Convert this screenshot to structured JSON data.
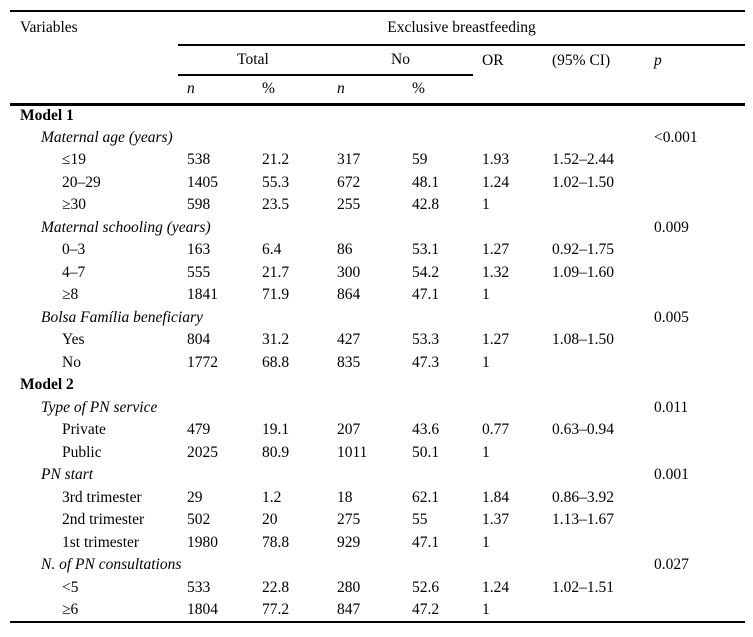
{
  "page": {
    "background": "#ffffff",
    "text_color": "#000000",
    "rule_color": "#000000"
  },
  "header": {
    "variables": "Variables",
    "span": "Exclusive breastfeeding",
    "total": "Total",
    "no": "No",
    "or": "OR",
    "ci": "(95% CI)",
    "p": "p",
    "n": "n",
    "pct": "%"
  },
  "sections": [
    {
      "label": "Model 1",
      "groups": [
        {
          "label": "Maternal age (years)",
          "p": "<0.001",
          "rows": [
            {
              "label": "≤19",
              "n_total": "538",
              "pct_total": "21.2",
              "n_no": "317",
              "pct_no": "59",
              "or": "1.93",
              "ci": "1.52–2.44"
            },
            {
              "label": "20–29",
              "n_total": "1405",
              "pct_total": "55.3",
              "n_no": "672",
              "pct_no": "48.1",
              "or": "1.24",
              "ci": "1.02–1.50"
            },
            {
              "label": "≥30",
              "n_total": "598",
              "pct_total": "23.5",
              "n_no": "255",
              "pct_no": "42.8",
              "or": "1",
              "ci": ""
            }
          ]
        },
        {
          "label": "Maternal schooling (years)",
          "p": "0.009",
          "rows": [
            {
              "label": "0–3",
              "n_total": "163",
              "pct_total": "6.4",
              "n_no": "86",
              "pct_no": "53.1",
              "or": "1.27",
              "ci": "0.92–1.75"
            },
            {
              "label": "4–7",
              "n_total": "555",
              "pct_total": "21.7",
              "n_no": "300",
              "pct_no": "54.2",
              "or": "1.32",
              "ci": "1.09–1.60"
            },
            {
              "label": "≥8",
              "n_total": "1841",
              "pct_total": "71.9",
              "n_no": "864",
              "pct_no": "47.1",
              "or": "1",
              "ci": ""
            }
          ]
        },
        {
          "label": "Bolsa Família beneficiary",
          "p": "0.005",
          "rows": [
            {
              "label": "Yes",
              "n_total": "804",
              "pct_total": "31.2",
              "n_no": "427",
              "pct_no": "53.3",
              "or": "1.27",
              "ci": "1.08–1.50"
            },
            {
              "label": "No",
              "n_total": "1772",
              "pct_total": "68.8",
              "n_no": "835",
              "pct_no": "47.3",
              "or": "1",
              "ci": ""
            }
          ]
        }
      ]
    },
    {
      "label": "Model 2",
      "groups": [
        {
          "label": "Type of PN service",
          "p": "0.011",
          "rows": [
            {
              "label": "Private",
              "n_total": "479",
              "pct_total": "19.1",
              "n_no": "207",
              "pct_no": "43.6",
              "or": "0.77",
              "ci": "0.63–0.94"
            },
            {
              "label": "Public",
              "n_total": "2025",
              "pct_total": "80.9",
              "n_no": "1011",
              "pct_no": "50.1",
              "or": "1",
              "ci": ""
            }
          ]
        },
        {
          "label": "PN start",
          "p": "0.001",
          "rows": [
            {
              "label": "3rd trimester",
              "n_total": "29",
              "pct_total": "1.2",
              "n_no": "18",
              "pct_no": "62.1",
              "or": "1.84",
              "ci": "0.86–3.92"
            },
            {
              "label": "2nd trimester",
              "n_total": "502",
              "pct_total": "20",
              "n_no": "275",
              "pct_no": "55",
              "or": "1.37",
              "ci": "1.13–1.67"
            },
            {
              "label": "1st trimester",
              "n_total": "1980",
              "pct_total": "78.8",
              "n_no": "929",
              "pct_no": "47.1",
              "or": "1",
              "ci": ""
            }
          ]
        },
        {
          "label": "N. of PN consultations",
          "p": "0.027",
          "rows": [
            {
              "label": "<5",
              "n_total": "533",
              "pct_total": "22.8",
              "n_no": "280",
              "pct_no": "52.6",
              "or": "1.24",
              "ci": "1.02–1.51"
            },
            {
              "label": "≥6",
              "n_total": "1804",
              "pct_total": "77.2",
              "n_no": "847",
              "pct_no": "47.2",
              "or": "1",
              "ci": ""
            }
          ]
        }
      ]
    }
  ]
}
